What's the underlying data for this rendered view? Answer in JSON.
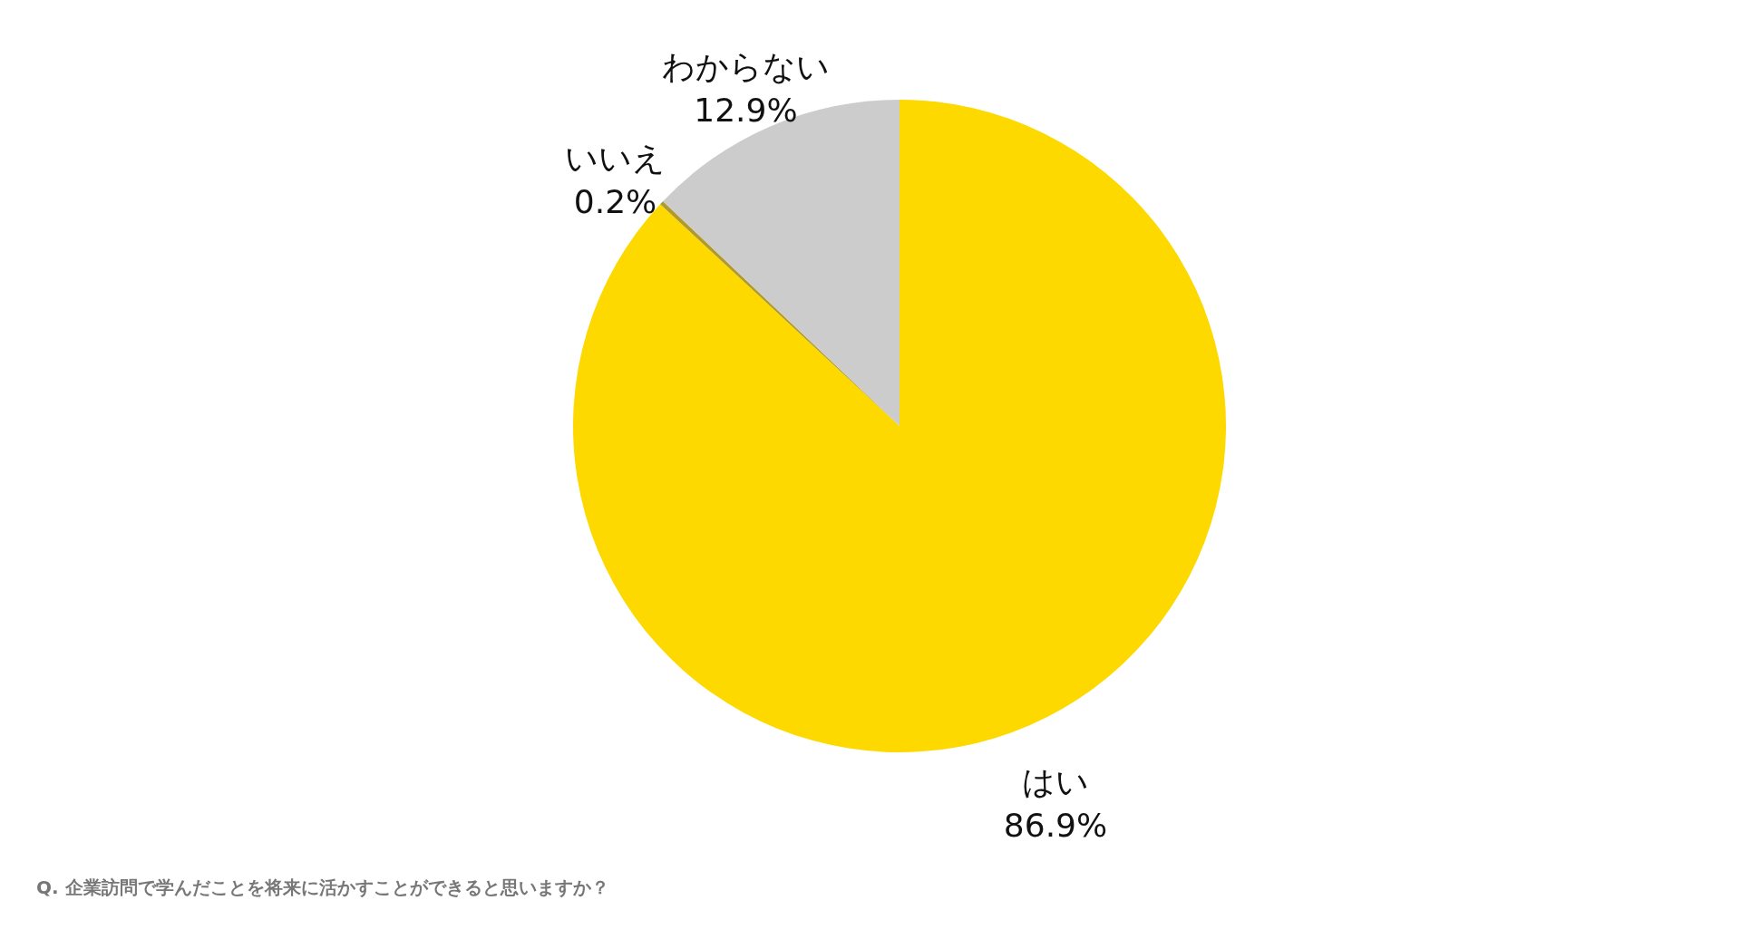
{
  "chart_data": {
    "type": "pie",
    "categories": [
      "はい",
      "いいえ",
      "わからない"
    ],
    "values": [
      86.9,
      0.2,
      12.9
    ],
    "colors": [
      "#fdd900",
      "#b09a2b",
      "#cccccc"
    ],
    "value_labels": [
      "86.9%",
      "0.2%",
      "12.9%"
    ],
    "legend": false,
    "annotations": [
      "Q. 企業訪問で学んだことを将来に活かすことができると思いますか？"
    ]
  }
}
